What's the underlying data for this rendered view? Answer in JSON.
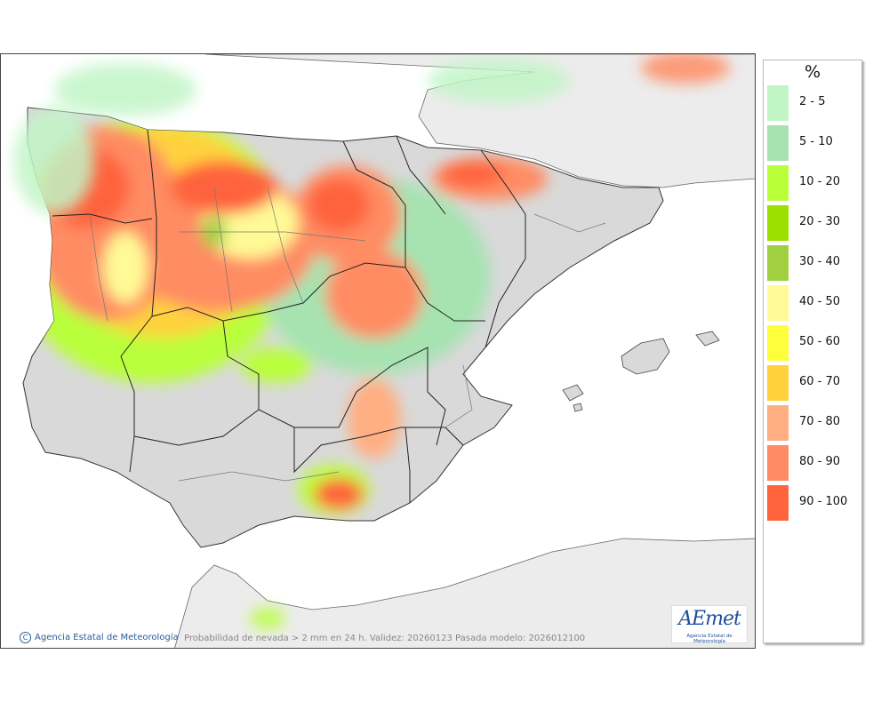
{
  "map": {
    "caption": "Probabilidad de nevada > 2 mm en 24 h. Validez: 20260123 Pasada modelo: 2026012100",
    "credit": "Agencia Estatal de Meteorología",
    "credit_icon": "copyright-icon",
    "logo": {
      "text": "AEmet",
      "subtitle": "Agencia Estatal de Meteorología"
    }
  },
  "legend": {
    "unit": "%",
    "classes": [
      {
        "label": "2 - 5",
        "color": "#c1f5c6"
      },
      {
        "label": "5 - 10",
        "color": "#a6e3b1"
      },
      {
        "label": "10 - 20",
        "color": "#b9ff3a"
      },
      {
        "label": "20 - 30",
        "color": "#9ae000"
      },
      {
        "label": "30 - 40",
        "color": "#a0d040"
      },
      {
        "label": "40 - 50",
        "color": "#fffa96"
      },
      {
        "label": "50 - 60",
        "color": "#ffff3c"
      },
      {
        "label": "60 - 70",
        "color": "#ffd23c"
      },
      {
        "label": "70 - 80",
        "color": "#ffaf82"
      },
      {
        "label": "80 - 90",
        "color": "#ff8c64"
      },
      {
        "label": "90 - 100",
        "color": "#ff643c"
      }
    ]
  },
  "colors": {
    "sea": "#ffffff",
    "land": "#d9d9d9",
    "foreign_land": "#ececec",
    "border": "#222222"
  }
}
